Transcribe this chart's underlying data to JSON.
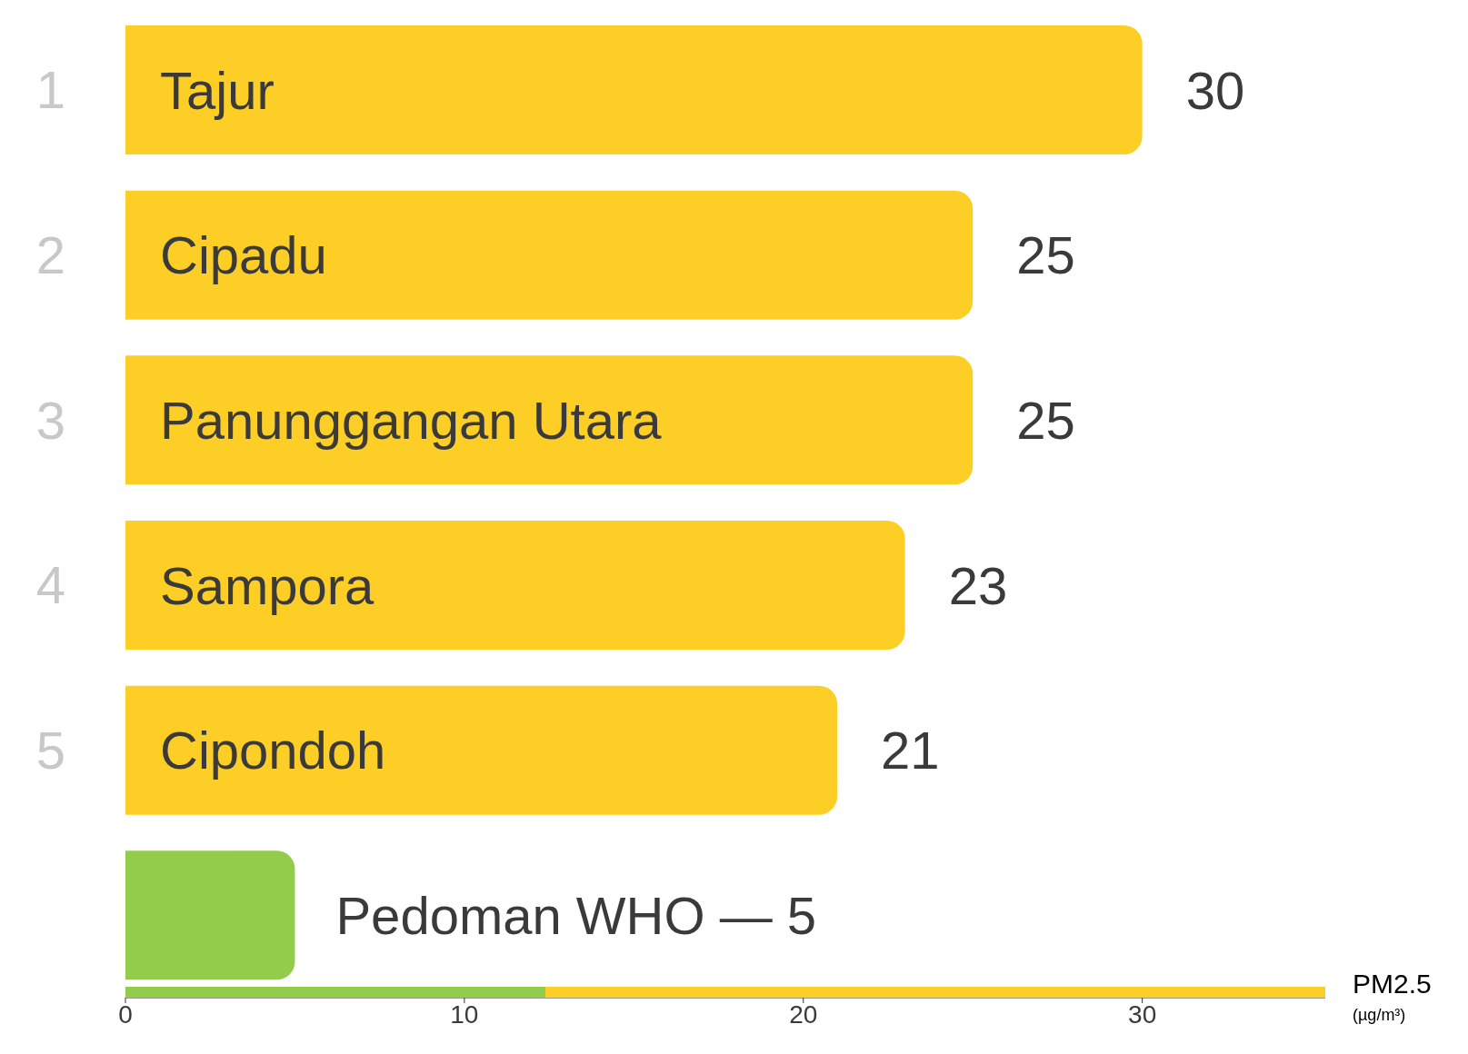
{
  "chart_data": {
    "type": "bar",
    "orientation": "horizontal",
    "xlabel": "PM2.5$_{(µg/m³)}$",
    "categories": [
      "Tajur",
      "Cipadu",
      "Panunggangan Utara",
      "Sampora",
      "Cipondoh",
      "Pedoman WHO — 5"
    ],
    "values": [
      30,
      25,
      25,
      23,
      21,
      5
    ],
    "colors": [
      "#fdcf26",
      "#fdcf26",
      "#fdcf26",
      "#fdcf26",
      "#fdcf26",
      "#93cc4a"
    ],
    "value_labels": [
      "30",
      "25",
      "25",
      "23",
      "21",
      null
    ],
    "annotations": [
      "1",
      "2",
      "3",
      "4",
      "5"
    ],
    "xlim": [
      0,
      35.4
    ],
    "xticks": [
      0,
      10,
      20,
      30
    ]
  }
}
